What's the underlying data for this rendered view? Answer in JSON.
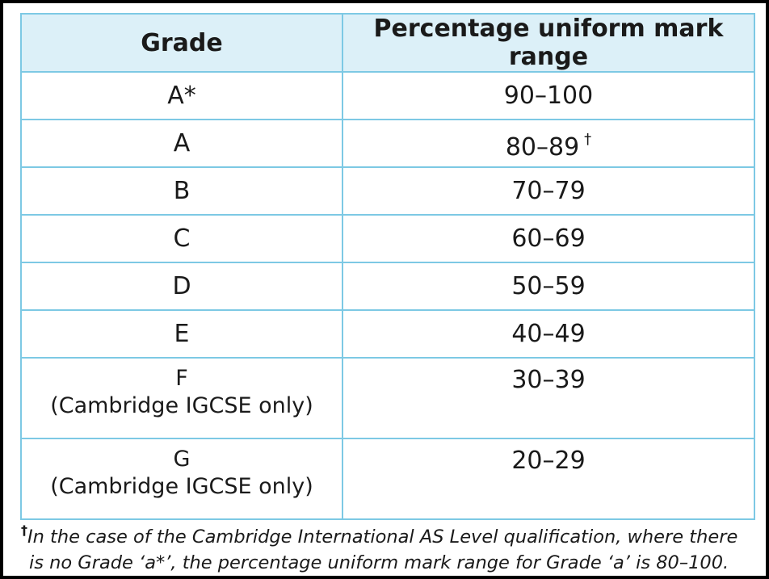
{
  "table": {
    "headers": {
      "grade": "Grade",
      "range": "Percentage uniform mark range"
    },
    "rows": [
      {
        "grade": "A*",
        "range": "90–100"
      },
      {
        "grade": "A",
        "range": "80–89",
        "dagger": "†"
      },
      {
        "grade": "B",
        "range": "70–79"
      },
      {
        "grade": "C",
        "range": "60–69"
      },
      {
        "grade": "D",
        "range": "50–59"
      },
      {
        "grade": "E",
        "range": "40–49"
      },
      {
        "grade": "F",
        "note": "(Cambridge IGCSE only)",
        "range": "30–39"
      },
      {
        "grade": "G",
        "note": "(Cambridge IGCSE only)",
        "range": "20–29"
      }
    ]
  },
  "footnote": {
    "marker": "†",
    "line1": "In the case of the Cambridge International AS Level qualification, where there",
    "line2": "is no Grade ‘a*’, the percentage uniform mark range for Grade ‘a’ is 80–100."
  }
}
